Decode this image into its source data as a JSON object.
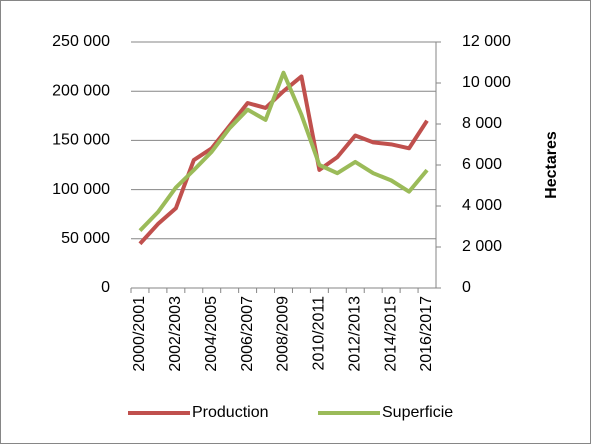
{
  "chart_data": {
    "type": "line",
    "categories": [
      "2000/2001",
      null,
      "2002/2003",
      null,
      "2004/2005",
      null,
      "2006/2007",
      null,
      "2008/2009",
      null,
      "2010/2011",
      null,
      "2012/2013",
      null,
      "2014/2015",
      null,
      "2016/2017"
    ],
    "series": [
      {
        "name": "Production",
        "color": "#c0504d",
        "values": [
          45000,
          65000,
          81000,
          130000,
          142000,
          165000,
          188000,
          183000,
          200000,
          215000,
          120000,
          133000,
          155000,
          148000,
          146000,
          142000,
          170000
        ]
      },
      {
        "name": "Superficie",
        "color": "#9bbb59",
        "axis": "y2",
        "values": [
          2800,
          3700,
          4900,
          5750,
          6650,
          7800,
          8700,
          8200,
          10500,
          8450,
          6000,
          5600,
          6150,
          5600,
          5250,
          4700,
          5750
        ]
      }
    ],
    "ylim": [
      0,
      250000
    ],
    "yticks": [
      0,
      {
        "value": 50000,
        "label": "50 000"
      },
      {
        "value": 100000,
        "label": "100 000"
      },
      {
        "value": 150000,
        "label": "150 000"
      },
      {
        "value": 200000,
        "label": "200 000"
      },
      {
        "value": 250000,
        "label": "250 000"
      }
    ],
    "y2lim": [
      0,
      12000
    ],
    "y2ticks": [
      0,
      {
        "value": 2000,
        "label": "2 000"
      },
      {
        "value": 4000,
        "label": "4 000"
      },
      {
        "value": 6000,
        "label": "6 000"
      },
      {
        "value": 8000,
        "label": "8 000"
      },
      {
        "value": 10000,
        "label": "10 000"
      },
      {
        "value": 12000,
        "label": "12 000"
      }
    ],
    "y2label": "Hectares",
    "grid": true,
    "legend": "bottom"
  }
}
